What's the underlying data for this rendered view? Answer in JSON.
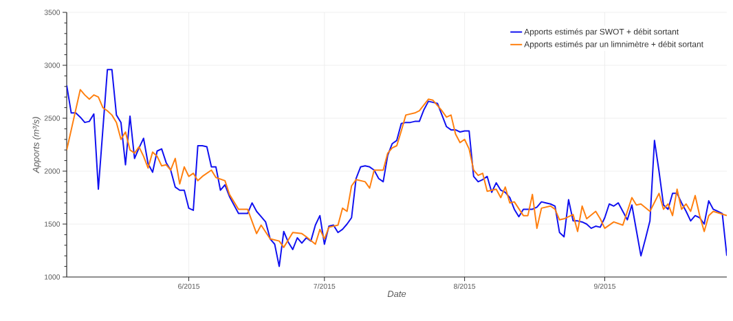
{
  "chart_data": {
    "type": "line",
    "xlabel": "Date",
    "ylabel": "Apports (m³/s)",
    "xlim": [
      "2015-05-05",
      "2015-09-28"
    ],
    "ylim": [
      1000,
      3500
    ],
    "xticks": [
      {
        "value": "2015-06-01",
        "label": "6/2015"
      },
      {
        "value": "2015-07-01",
        "label": "7/2015"
      },
      {
        "value": "2015-08-01",
        "label": "8/2015"
      },
      {
        "value": "2015-09-01",
        "label": "9/2015"
      }
    ],
    "yticks": [
      1000,
      {
        "value": 1100,
        "label": null
      },
      {
        "value": 1200,
        "label": null
      },
      {
        "value": 1300,
        "label": null
      },
      {
        "value": 1400,
        "label": null
      },
      1500,
      {
        "value": 1600,
        "label": null
      },
      {
        "value": 1700,
        "label": null
      },
      {
        "value": 1800,
        "label": null
      },
      {
        "value": 1900,
        "label": null
      },
      2000,
      {
        "value": 2100,
        "label": null
      },
      {
        "value": 2200,
        "label": null
      },
      {
        "value": 2300,
        "label": null
      },
      {
        "value": 2400,
        "label": null
      },
      2500,
      {
        "value": 2600,
        "label": null
      },
      {
        "value": 2700,
        "label": null
      },
      {
        "value": 2800,
        "label": null
      },
      {
        "value": 2900,
        "label": null
      },
      3000,
      {
        "value": 3100,
        "label": null
      },
      {
        "value": 3200,
        "label": null
      },
      {
        "value": 3300,
        "label": null
      },
      {
        "value": 3400,
        "label": null
      },
      3500
    ],
    "grid": true,
    "legend": "top right",
    "line_style": "solid",
    "series": [
      {
        "name": "Apports estimés par SWOT + débit sortant",
        "color": "#1010f0",
        "x": [
          "2015-05-05",
          "2015-05-06",
          "2015-05-07",
          "2015-05-08",
          "2015-05-09",
          "2015-05-10",
          "2015-05-11",
          "2015-05-12",
          "2015-05-14",
          "2015-05-15",
          "2015-05-16",
          "2015-05-17",
          "2015-05-18",
          "2015-05-19",
          "2015-05-20",
          "2015-05-21",
          "2015-05-22",
          "2015-05-23",
          "2015-05-24",
          "2015-05-25",
          "2015-05-26",
          "2015-05-27",
          "2015-05-28",
          "2015-05-29",
          "2015-05-30",
          "2015-05-31",
          "2015-06-01",
          "2015-06-02",
          "2015-06-03",
          "2015-06-04",
          "2015-06-05",
          "2015-06-06",
          "2015-06-07",
          "2015-06-08",
          "2015-06-09",
          "2015-06-10",
          "2015-06-11",
          "2015-06-12",
          "2015-06-13",
          "2015-06-14",
          "2015-06-15",
          "2015-06-16",
          "2015-06-17",
          "2015-06-18",
          "2015-06-19",
          "2015-06-20",
          "2015-06-21",
          "2015-06-22",
          "2015-06-23",
          "2015-06-24",
          "2015-06-25",
          "2015-06-26",
          "2015-06-27",
          "2015-06-28",
          "2015-06-29",
          "2015-06-30",
          "2015-07-01",
          "2015-07-02",
          "2015-07-03",
          "2015-07-04",
          "2015-07-05",
          "2015-07-06",
          "2015-07-07",
          "2015-07-08",
          "2015-07-09",
          "2015-07-10",
          "2015-07-11",
          "2015-07-12",
          "2015-07-13",
          "2015-07-14",
          "2015-07-15",
          "2015-07-16",
          "2015-07-17",
          "2015-07-18",
          "2015-07-19",
          "2015-07-20",
          "2015-07-21",
          "2015-07-22",
          "2015-07-23",
          "2015-07-24",
          "2015-07-25",
          "2015-07-26",
          "2015-07-27",
          "2015-07-28",
          "2015-07-29",
          "2015-07-30",
          "2015-07-31",
          "2015-08-01",
          "2015-08-02",
          "2015-08-03",
          "2015-08-04",
          "2015-08-05",
          "2015-08-06",
          "2015-08-07",
          "2015-08-08",
          "2015-08-09",
          "2015-08-10",
          "2015-08-11",
          "2015-08-12",
          "2015-08-13",
          "2015-08-14",
          "2015-08-15",
          "2015-08-16",
          "2015-08-17",
          "2015-08-18",
          "2015-08-19",
          "2015-08-20",
          "2015-08-21",
          "2015-08-22",
          "2015-08-23",
          "2015-08-24",
          "2015-08-25",
          "2015-08-26",
          "2015-08-27",
          "2015-08-28",
          "2015-08-29",
          "2015-08-30",
          "2015-08-31",
          "2015-09-01",
          "2015-09-02",
          "2015-09-03",
          "2015-09-04",
          "2015-09-05",
          "2015-09-06",
          "2015-09-07",
          "2015-09-08",
          "2015-09-09",
          "2015-09-10",
          "2015-09-11",
          "2015-09-12",
          "2015-09-13",
          "2015-09-14",
          "2015-09-15",
          "2015-09-16",
          "2015-09-17",
          "2015-09-18",
          "2015-09-19",
          "2015-09-20",
          "2015-09-21",
          "2015-09-22",
          "2015-09-23",
          "2015-09-24",
          "2015-09-25",
          "2015-09-26",
          "2015-09-27",
          "2015-09-28"
        ],
        "values": [
          2810,
          2550,
          2550,
          2510,
          2460,
          2470,
          2540,
          1830,
          2960,
          2960,
          2530,
          2460,
          2060,
          2520,
          2120,
          2220,
          2310,
          2070,
          1990,
          2190,
          2210,
          2080,
          2010,
          1850,
          1820,
          1820,
          1650,
          1630,
          2240,
          2240,
          2230,
          2040,
          2040,
          1820,
          1870,
          1760,
          1680,
          1600,
          1600,
          1600,
          1700,
          1620,
          1570,
          1520,
          1360,
          1310,
          1100,
          1430,
          1330,
          1260,
          1370,
          1320,
          1370,
          1340,
          1490,
          1580,
          1310,
          1480,
          1490,
          1420,
          1450,
          1500,
          1560,
          1930,
          2040,
          2050,
          2040,
          2010,
          1930,
          1900,
          2150,
          2260,
          2290,
          2450,
          2460,
          2460,
          2470,
          2470,
          2580,
          2660,
          2650,
          2640,
          2530,
          2420,
          2390,
          2390,
          2370,
          2380,
          2380,
          1950,
          1900,
          1920,
          1950,
          1800,
          1890,
          1820,
          1800,
          1750,
          1640,
          1570,
          1640,
          1640,
          1640,
          1660,
          1710,
          1700,
          1690,
          1670,
          1420,
          1380,
          1730,
          1530,
          1530,
          1520,
          1500,
          1460,
          1480,
          1470,
          1560,
          1690,
          1670,
          1700,
          1620,
          1540,
          1680,
          1440,
          1200,
          1360,
          1530,
          2290,
          2000,
          1680,
          1640,
          1790,
          1790,
          1700,
          1620,
          1530,
          1580,
          1560,
          1500,
          1720,
          1640,
          1620,
          1600,
          1200
        ]
      },
      {
        "name": "Apports estimés par un limnimètre + débit sortant",
        "color": "#ff7f0e",
        "x": [
          "2015-05-05",
          "2015-05-08",
          "2015-05-09",
          "2015-05-10",
          "2015-05-11",
          "2015-05-12",
          "2015-05-13",
          "2015-05-14",
          "2015-05-15",
          "2015-05-16",
          "2015-05-17",
          "2015-05-18",
          "2015-05-19",
          "2015-05-20",
          "2015-05-21",
          "2015-05-22",
          "2015-05-23",
          "2015-05-24",
          "2015-05-25",
          "2015-05-26",
          "2015-05-27",
          "2015-05-28",
          "2015-05-29",
          "2015-05-30",
          "2015-05-31",
          "2015-06-01",
          "2015-06-02",
          "2015-06-03",
          "2015-06-04",
          "2015-06-06",
          "2015-06-07",
          "2015-06-09",
          "2015-06-10",
          "2015-06-12",
          "2015-06-14",
          "2015-06-16",
          "2015-06-17",
          "2015-06-19",
          "2015-06-21",
          "2015-06-22",
          "2015-06-24",
          "2015-06-26",
          "2015-06-27",
          "2015-06-29",
          "2015-06-30",
          "2015-07-01",
          "2015-07-02",
          "2015-07-04",
          "2015-07-05",
          "2015-07-06",
          "2015-07-07",
          "2015-07-08",
          "2015-07-10",
          "2015-07-11",
          "2015-07-12",
          "2015-07-14",
          "2015-07-15",
          "2015-07-16",
          "2015-07-17",
          "2015-07-18",
          "2015-07-19",
          "2015-07-21",
          "2015-07-22",
          "2015-07-24",
          "2015-07-25",
          "2015-07-27",
          "2015-07-28",
          "2015-07-29",
          "2015-07-30",
          "2015-07-31",
          "2015-08-01",
          "2015-08-02",
          "2015-08-03",
          "2015-08-04",
          "2015-08-05",
          "2015-08-06",
          "2015-08-07",
          "2015-08-08",
          "2015-08-09",
          "2015-08-10",
          "2015-08-11",
          "2015-08-12",
          "2015-08-14",
          "2015-08-15",
          "2015-08-16",
          "2015-08-17",
          "2015-08-18",
          "2015-08-20",
          "2015-08-21",
          "2015-08-22",
          "2015-08-23",
          "2015-08-25",
          "2015-08-26",
          "2015-08-27",
          "2015-08-28",
          "2015-08-30",
          "2015-08-31",
          "2015-09-01",
          "2015-09-03",
          "2015-09-05",
          "2015-09-07",
          "2015-09-08",
          "2015-09-09",
          "2015-09-11",
          "2015-09-13",
          "2015-09-14",
          "2015-09-15",
          "2015-09-16",
          "2015-09-17",
          "2015-09-18",
          "2015-09-19",
          "2015-09-20",
          "2015-09-21",
          "2015-09-22",
          "2015-09-23",
          "2015-09-24",
          "2015-09-25",
          "2015-09-28"
        ],
        "values": [
          2200,
          2770,
          2720,
          2680,
          2720,
          2700,
          2600,
          2570,
          2530,
          2460,
          2300,
          2370,
          2200,
          2170,
          2230,
          2140,
          2030,
          2180,
          2140,
          2050,
          2060,
          2010,
          2120,
          1880,
          2040,
          1950,
          1980,
          1910,
          1950,
          2010,
          1940,
          1910,
          1780,
          1640,
          1640,
          1410,
          1490,
          1360,
          1340,
          1280,
          1420,
          1410,
          1380,
          1310,
          1450,
          1360,
          1470,
          1490,
          1650,
          1620,
          1860,
          1920,
          1900,
          1840,
          2010,
          2010,
          2170,
          2220,
          2240,
          2380,
          2530,
          2550,
          2570,
          2680,
          2670,
          2570,
          2510,
          2530,
          2350,
          2270,
          2300,
          2210,
          2010,
          1960,
          1980,
          1810,
          1820,
          1830,
          1750,
          1850,
          1700,
          1710,
          1580,
          1580,
          1780,
          1460,
          1650,
          1670,
          1640,
          1540,
          1550,
          1590,
          1430,
          1670,
          1550,
          1620,
          1550,
          1460,
          1520,
          1490,
          1750,
          1680,
          1690,
          1620,
          1790,
          1640,
          1690,
          1580,
          1830,
          1640,
          1690,
          1620,
          1770,
          1580,
          1430,
          1580,
          1620,
          1580
        ]
      }
    ]
  }
}
